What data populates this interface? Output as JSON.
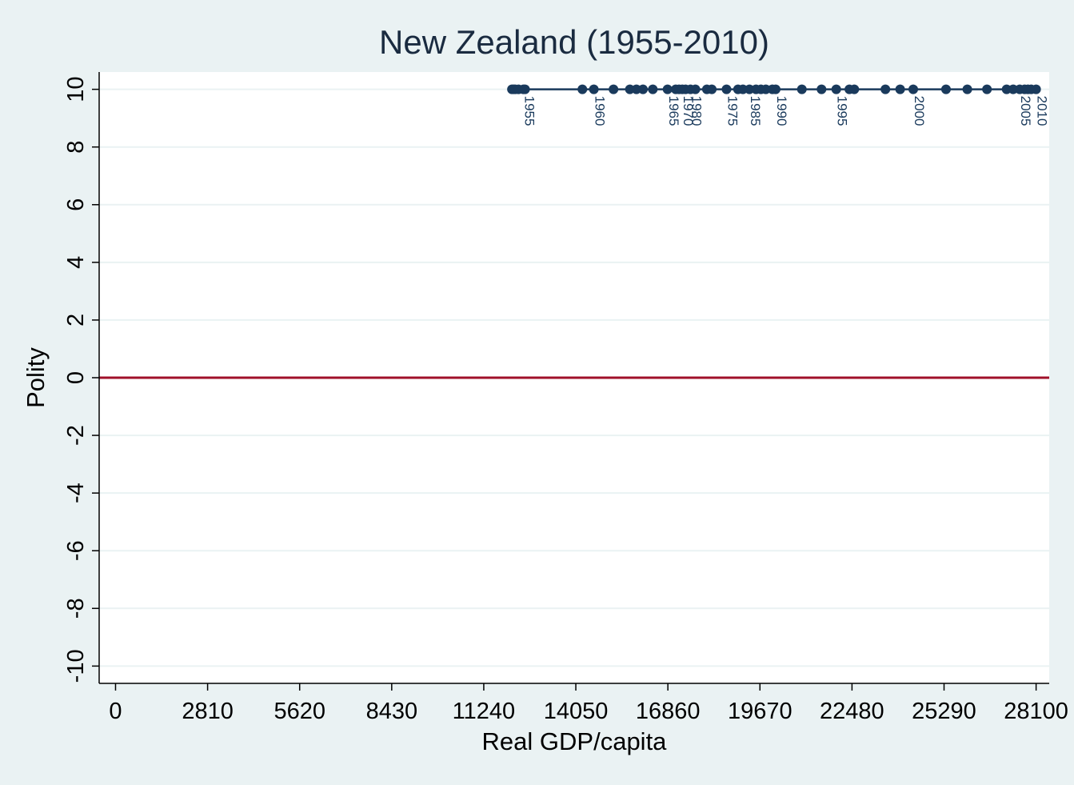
{
  "chart_data": {
    "type": "scatter",
    "title": "New Zealand (1955-2010)",
    "xlabel": "Real GDP/capita",
    "ylabel": "Polity",
    "xlim": [
      -500,
      28500
    ],
    "ylim": [
      -10.6,
      10.6
    ],
    "xticks": [
      0,
      2810,
      5620,
      8430,
      11240,
      14050,
      16860,
      19670,
      22480,
      25290,
      28100
    ],
    "yticks": [
      -10,
      -8,
      -6,
      -4,
      -2,
      0,
      2,
      4,
      6,
      8,
      10
    ],
    "reference_line": {
      "y": 0,
      "color": "#a0102a"
    },
    "series": [
      {
        "marker_color": "#1a3a5c",
        "line_color": "#1a3a5c",
        "points": [
          {
            "x": 12100,
            "y": 10
          },
          {
            "x": 12150,
            "y": 10
          },
          {
            "x": 12200,
            "y": 10
          },
          {
            "x": 12300,
            "y": 10
          },
          {
            "x": 12450,
            "y": 10,
            "label": "1955"
          },
          {
            "x": 12500,
            "y": 10
          },
          {
            "x": 14250,
            "y": 10
          },
          {
            "x": 14600,
            "y": 10,
            "label": "1960"
          },
          {
            "x": 15200,
            "y": 10
          },
          {
            "x": 15700,
            "y": 10
          },
          {
            "x": 15900,
            "y": 10
          },
          {
            "x": 16100,
            "y": 10
          },
          {
            "x": 16400,
            "y": 10
          },
          {
            "x": 16850,
            "y": 10,
            "label": "1965"
          },
          {
            "x": 17100,
            "y": 10
          },
          {
            "x": 17200,
            "y": 10
          },
          {
            "x": 17300,
            "y": 10,
            "label": "1970"
          },
          {
            "x": 17400,
            "y": 10
          },
          {
            "x": 17550,
            "y": 10,
            "label": "1980"
          },
          {
            "x": 17700,
            "y": 10
          },
          {
            "x": 18050,
            "y": 10
          },
          {
            "x": 18200,
            "y": 10
          },
          {
            "x": 18650,
            "y": 10,
            "label": "1975"
          },
          {
            "x": 19000,
            "y": 10
          },
          {
            "x": 19150,
            "y": 10
          },
          {
            "x": 19350,
            "y": 10,
            "label": "1985"
          },
          {
            "x": 19550,
            "y": 10
          },
          {
            "x": 19700,
            "y": 10
          },
          {
            "x": 19850,
            "y": 10
          },
          {
            "x": 20050,
            "y": 10
          },
          {
            "x": 20150,
            "y": 10,
            "label": "1990"
          },
          {
            "x": 20950,
            "y": 10
          },
          {
            "x": 21550,
            "y": 10
          },
          {
            "x": 22000,
            "y": 10,
            "label": "1995"
          },
          {
            "x": 22400,
            "y": 10
          },
          {
            "x": 22550,
            "y": 10
          },
          {
            "x": 23500,
            "y": 10
          },
          {
            "x": 23950,
            "y": 10
          },
          {
            "x": 24350,
            "y": 10,
            "label": "2000"
          },
          {
            "x": 25350,
            "y": 10
          },
          {
            "x": 26000,
            "y": 10
          },
          {
            "x": 26600,
            "y": 10
          },
          {
            "x": 27200,
            "y": 10
          },
          {
            "x": 27400,
            "y": 10
          },
          {
            "x": 27600,
            "y": 10,
            "label": "2005"
          },
          {
            "x": 27750,
            "y": 10
          },
          {
            "x": 27850,
            "y": 10
          },
          {
            "x": 27950,
            "y": 10
          },
          {
            "x": 28100,
            "y": 10,
            "label": "2010"
          }
        ]
      }
    ]
  }
}
